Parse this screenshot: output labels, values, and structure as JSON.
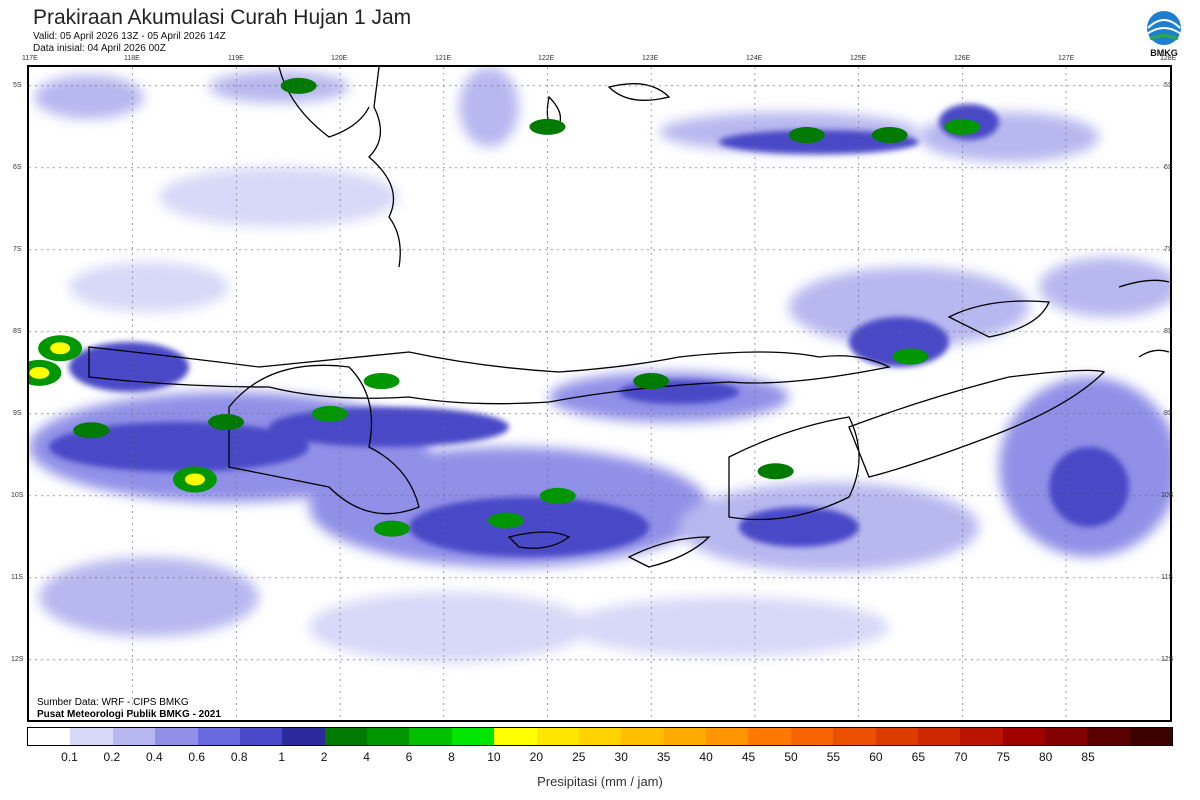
{
  "header": {
    "title": "Prakiraan Akumulasi Curah Hujan 1 Jam",
    "valid": "Valid: 05 April 2026 13Z - 05 April 2026 14Z",
    "init": "Data inisial: 04 April 2026 00Z",
    "logo_text": "BMKG"
  },
  "map": {
    "lon_ticks": [
      "117E",
      "118E",
      "119E",
      "120E",
      "121E",
      "122E",
      "123E",
      "124E",
      "125E",
      "126E",
      "127E",
      "128E"
    ],
    "lat_ticks": [
      "5S",
      "6S",
      "7S",
      "8S",
      "9S",
      "10S",
      "11S",
      "12S"
    ]
  },
  "footer": {
    "source": "Sumber Data: WRF - CIPS BMKG",
    "center": "Pusat Meteorologi Publik BMKG - 2021"
  },
  "legend": {
    "colors": [
      "#ffffff",
      "#d8d8f8",
      "#b8b8f0",
      "#9090e8",
      "#6a6ae0",
      "#4848c8",
      "#2a2a9a",
      "#007a00",
      "#009600",
      "#00c000",
      "#00e600",
      "#ffff00",
      "#ffe600",
      "#ffd200",
      "#ffbe00",
      "#ffaa00",
      "#ff9600",
      "#ff7800",
      "#f56400",
      "#eb5000",
      "#dc3c00",
      "#cd2800",
      "#b91400",
      "#a00000",
      "#820000",
      "#5a0000",
      "#3c0000"
    ],
    "labels": [
      "0.1",
      "0.2",
      "0.4",
      "0.6",
      "0.8",
      "1",
      "2",
      "4",
      "6",
      "8",
      "10",
      "20",
      "25",
      "30",
      "35",
      "40",
      "45",
      "50",
      "55",
      "60",
      "65",
      "70",
      "75",
      "80",
      "85"
    ],
    "xlabel": "Presipitasi (mm / jam)"
  },
  "rain_cells": [
    {
      "lon": 117.3,
      "lat": -8.2,
      "level": 10
    },
    {
      "lon": 117.1,
      "lat": -8.5,
      "level": 10
    },
    {
      "lon": 118.6,
      "lat": -9.8,
      "level": 10
    },
    {
      "lon": 119.9,
      "lat": -9.0,
      "level": 4
    },
    {
      "lon": 120.4,
      "lat": -8.6,
      "level": 4
    },
    {
      "lon": 121.6,
      "lat": -10.3,
      "level": 4
    },
    {
      "lon": 122.1,
      "lat": -10.0,
      "level": 4
    },
    {
      "lon": 120.5,
      "lat": -10.4,
      "level": 4
    },
    {
      "lon": 124.5,
      "lat": -5.6,
      "level": 2
    },
    {
      "lon": 125.3,
      "lat": -5.6,
      "level": 2
    },
    {
      "lon": 126.0,
      "lat": -5.5,
      "level": 4
    },
    {
      "lon": 125.5,
      "lat": -8.3,
      "level": 4
    },
    {
      "lon": 122.0,
      "lat": -5.5,
      "level": 2
    },
    {
      "lon": 119.6,
      "lat": -5.0,
      "level": 2
    },
    {
      "lon": 123.0,
      "lat": -8.6,
      "level": 2
    },
    {
      "lon": 124.2,
      "lat": -9.7,
      "level": 2
    },
    {
      "lon": 117.6,
      "lat": -9.2,
      "level": 2
    },
    {
      "lon": 118.9,
      "lat": -9.1,
      "level": 2
    }
  ]
}
